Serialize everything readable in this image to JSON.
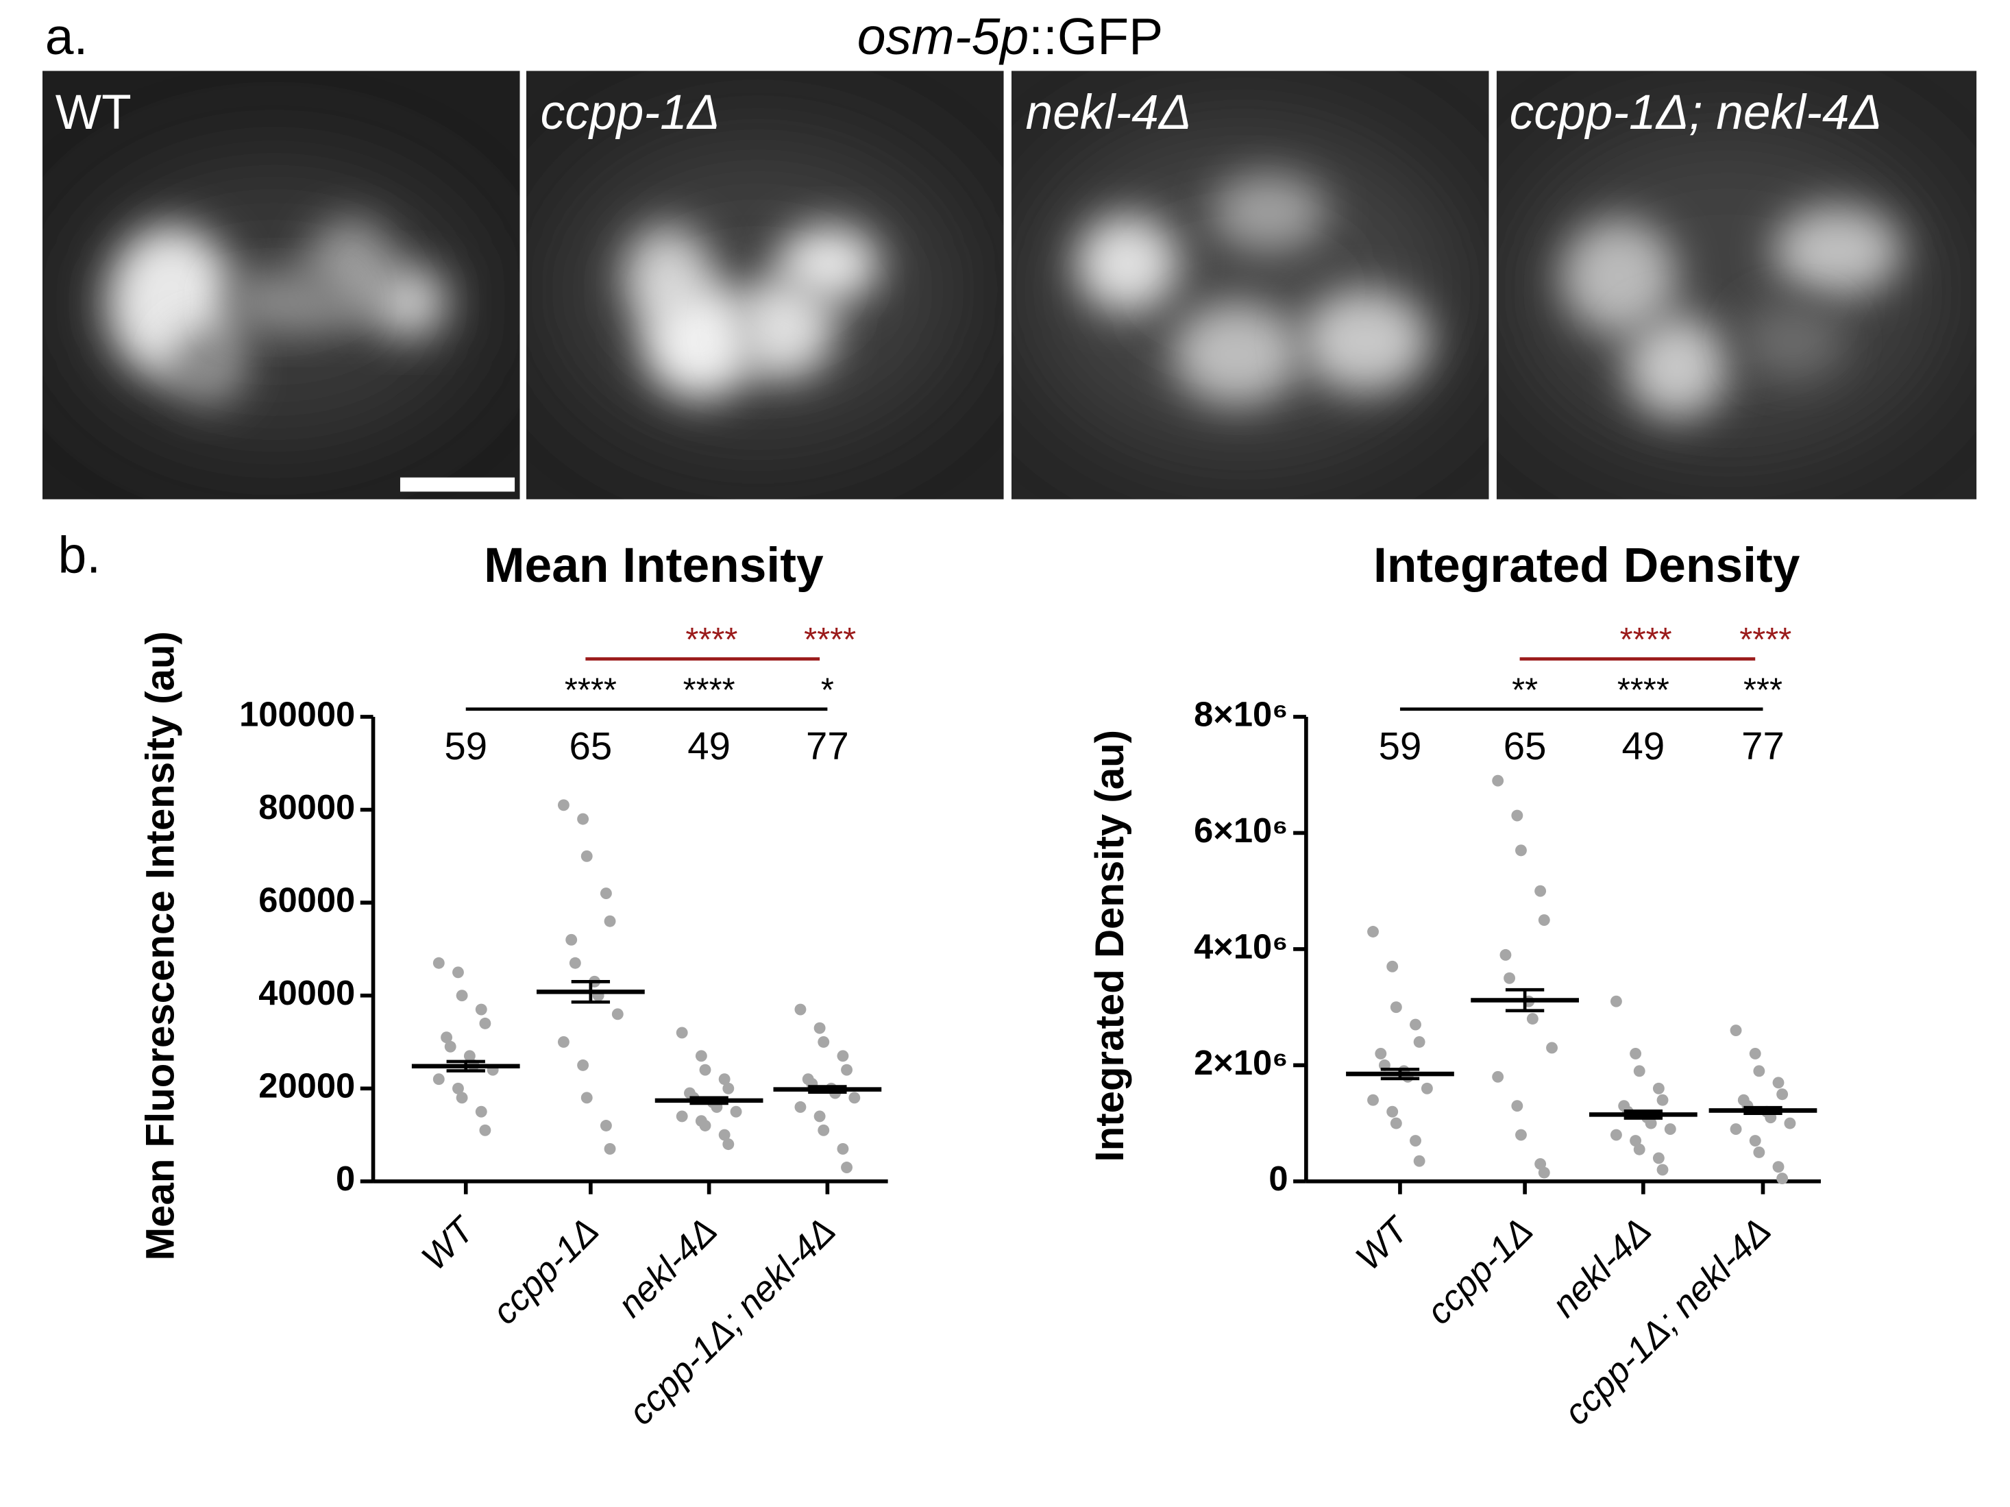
{
  "figure": {
    "panel_a": "a.",
    "panel_b": "b.",
    "title_italic": "osm-5p",
    "title_rest": "::GFP"
  },
  "images": [
    {
      "label": "WT"
    },
    {
      "label": "ccpp-1Δ"
    },
    {
      "label": "nekl-4Δ"
    },
    {
      "label": "ccpp-1Δ; nekl-4Δ"
    }
  ],
  "chart_data": [
    {
      "type": "dot",
      "title": "Mean Intensity",
      "y_label": "Mean Fluorescence Intensity (au)",
      "categories": [
        "WT",
        "ccpp-1Δ",
        "nekl-4Δ",
        "ccpp-1Δ; nekl-4Δ"
      ],
      "n": [
        59,
        65,
        49,
        77
      ],
      "ylim": [
        0,
        100000
      ],
      "yticks": [
        0,
        20000,
        40000,
        60000,
        80000,
        100000
      ],
      "point_color": "#a6a6a6",
      "means": [
        24800,
        40800,
        17400,
        19800
      ],
      "sems": [
        1000,
        2200,
        600,
        600
      ],
      "points": [
        [
          47000,
          45000,
          40000,
          37000,
          34000,
          31000,
          29000,
          27000,
          25000,
          24000,
          22000,
          20000,
          18000,
          15000,
          11000
        ],
        [
          81000,
          78000,
          70000,
          62000,
          56000,
          52000,
          47000,
          43000,
          40000,
          36000,
          30000,
          25000,
          18000,
          12000,
          7000
        ],
        [
          32000,
          27000,
          24000,
          22000,
          20000,
          19000,
          18000,
          17000,
          16000,
          15000,
          14000,
          13000,
          12000,
          10000,
          8000
        ],
        [
          37000,
          33000,
          30000,
          27000,
          24000,
          22000,
          21000,
          20000,
          19000,
          18000,
          16000,
          14000,
          11000,
          7000,
          3000
        ]
      ],
      "brackets": [
        {
          "color": "#000000",
          "labels": [
            null,
            "****",
            "****",
            "*"
          ]
        },
        {
          "color": "#9b1b1b",
          "labels": [
            null,
            null,
            "****",
            "****"
          ]
        }
      ]
    },
    {
      "type": "dot",
      "title": "Integrated Density",
      "y_label": "Integrated Density (au)",
      "categories": [
        "WT",
        "ccpp-1Δ",
        "nekl-4Δ",
        "ccpp-1Δ; nekl-4Δ"
      ],
      "n": [
        59,
        65,
        49,
        77
      ],
      "ylim": [
        0,
        8000000
      ],
      "yticks": [
        0,
        {
          "value": 2000000,
          "label": "2×10⁶"
        },
        {
          "value": 4000000,
          "label": "4×10⁶"
        },
        {
          "value": 6000000,
          "label": "6×10⁶"
        },
        {
          "value": 8000000,
          "label": "8×10⁶"
        }
      ],
      "point_color": "#a6a6a6",
      "means": [
        1850000,
        3120000,
        1150000,
        1220000
      ],
      "sems": [
        80000,
        180000,
        60000,
        50000
      ],
      "points": [
        [
          4300000,
          3700000,
          3000000,
          2700000,
          2400000,
          2200000,
          2000000,
          1900000,
          1800000,
          1600000,
          1400000,
          1200000,
          1000000,
          700000,
          350000
        ],
        [
          6900000,
          6300000,
          5700000,
          5000000,
          4500000,
          3900000,
          3500000,
          3100000,
          2800000,
          2300000,
          1800000,
          1300000,
          800000,
          300000,
          150000
        ],
        [
          3100000,
          2200000,
          1900000,
          1600000,
          1400000,
          1300000,
          1200000,
          1100000,
          1000000,
          900000,
          800000,
          700000,
          550000,
          400000,
          200000
        ],
        [
          2600000,
          2200000,
          1900000,
          1700000,
          1500000,
          1400000,
          1300000,
          1200000,
          1100000,
          1000000,
          900000,
          700000,
          500000,
          250000,
          50000
        ]
      ],
      "brackets": [
        {
          "color": "#000000",
          "labels": [
            null,
            "**",
            "****",
            "***"
          ]
        },
        {
          "color": "#9b1b1b",
          "labels": [
            null,
            null,
            "****",
            "****"
          ]
        }
      ]
    }
  ]
}
